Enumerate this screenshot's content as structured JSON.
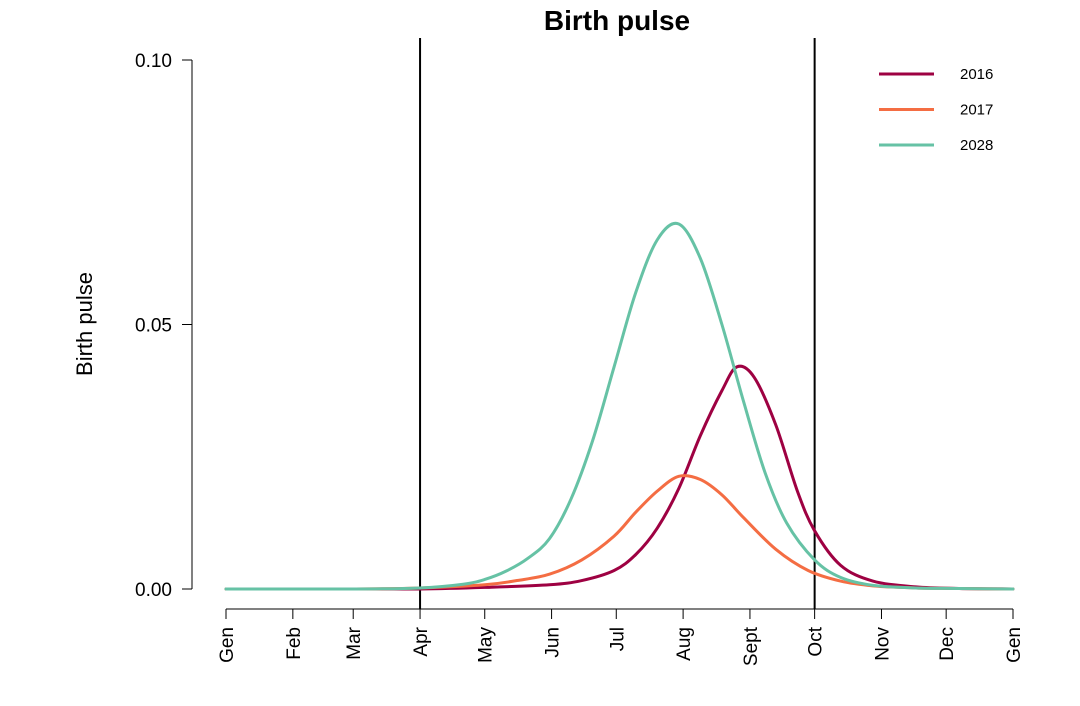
{
  "chart_data": {
    "type": "line",
    "title": "Birth pulse",
    "ylabel": "Birth pulse",
    "xlabel": "",
    "xlim": [
      0,
      365
    ],
    "ylim": [
      0,
      0.1
    ],
    "grid": false,
    "legend_position": "top-right",
    "x_ticks": [
      {
        "value": 0,
        "label": "Gen"
      },
      {
        "value": 31,
        "label": "Feb"
      },
      {
        "value": 59,
        "label": "Mar"
      },
      {
        "value": 90,
        "label": "Apr"
      },
      {
        "value": 120,
        "label": "May"
      },
      {
        "value": 151,
        "label": "Jun"
      },
      {
        "value": 181,
        "label": "Jul"
      },
      {
        "value": 212,
        "label": "Aug"
      },
      {
        "value": 243,
        "label": "Sept"
      },
      {
        "value": 273,
        "label": "Oct"
      },
      {
        "value": 304,
        "label": "Nov"
      },
      {
        "value": 334,
        "label": "Dec"
      },
      {
        "value": 365,
        "label": "Gen"
      }
    ],
    "y_ticks": [
      {
        "value": 0,
        "label": "0.00"
      },
      {
        "value": 0.05,
        "label": "0.05"
      },
      {
        "value": 0.1,
        "label": "0.10"
      }
    ],
    "vertical_lines": [
      90,
      273
    ],
    "series": [
      {
        "name": "2016",
        "color": "#9e0142",
        "x": [
          0,
          60,
          90,
          120,
          150,
          165,
          180,
          190,
          200,
          210,
          220,
          230,
          237,
          245,
          255,
          265,
          273,
          285,
          300,
          320,
          340,
          365
        ],
        "y": [
          0,
          0,
          0,
          0.0003,
          0.0008,
          0.0016,
          0.0035,
          0.0065,
          0.0115,
          0.019,
          0.029,
          0.0375,
          0.042,
          0.04,
          0.031,
          0.0185,
          0.011,
          0.0045,
          0.0015,
          0.0004,
          0.0001,
          0
        ]
      },
      {
        "name": "2017",
        "color": "#f46d43",
        "x": [
          0,
          60,
          90,
          120,
          135,
          150,
          165,
          180,
          190,
          200,
          210,
          220,
          230,
          240,
          255,
          270,
          285,
          300,
          320,
          340,
          365
        ],
        "y": [
          0,
          0,
          0.0002,
          0.0008,
          0.0016,
          0.0028,
          0.0055,
          0.01,
          0.0145,
          0.0185,
          0.0213,
          0.0207,
          0.0178,
          0.0135,
          0.0075,
          0.0035,
          0.0015,
          0.0006,
          0.0002,
          0.0001,
          0
        ]
      },
      {
        "name": "2028",
        "color": "#66c2a5",
        "x": [
          0,
          60,
          90,
          110,
          120,
          130,
          140,
          150,
          160,
          170,
          180,
          190,
          200,
          210,
          220,
          230,
          240,
          250,
          260,
          273,
          285,
          300,
          320,
          340,
          365
        ],
        "y": [
          0,
          0,
          0.0002,
          0.0009,
          0.0018,
          0.0034,
          0.0058,
          0.0095,
          0.017,
          0.028,
          0.042,
          0.056,
          0.066,
          0.069,
          0.0625,
          0.05,
          0.0355,
          0.022,
          0.0125,
          0.0055,
          0.0022,
          0.0007,
          0.0002,
          0.0001,
          0
        ]
      }
    ]
  }
}
